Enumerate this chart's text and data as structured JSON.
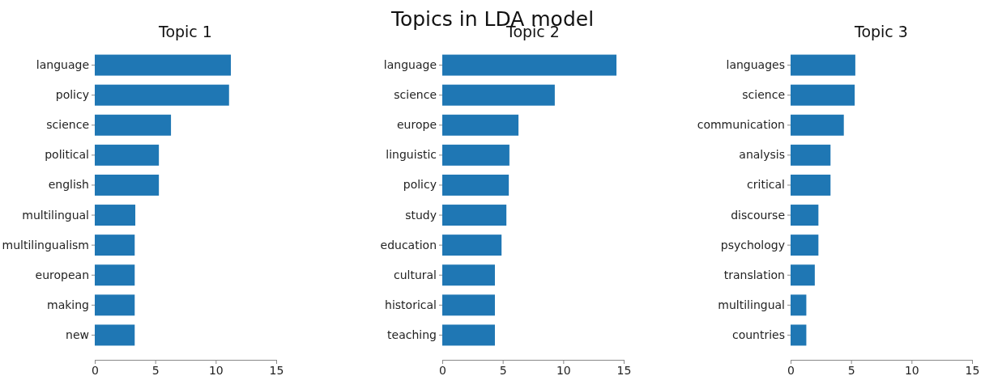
{
  "chart_data": [
    {
      "type": "bar",
      "orientation": "horizontal",
      "title": "Topic 1",
      "annotations": [
        "Topics in LDA model"
      ],
      "categories": [
        "language",
        "policy",
        "science",
        "political",
        "english",
        "multilingual",
        "multilingualism",
        "european",
        "making",
        "new"
      ],
      "values": [
        11.25,
        11.1,
        6.3,
        5.3,
        5.3,
        3.35,
        3.3,
        3.3,
        3.3,
        3.3
      ],
      "color": "#1f77b4",
      "xlim": [
        0,
        15
      ],
      "xticks": [
        0,
        5,
        10,
        15
      ],
      "grid": false
    },
    {
      "type": "bar",
      "orientation": "horizontal",
      "title": "Topic 2",
      "categories": [
        "language",
        "science",
        "europe",
        "linguistic",
        "policy",
        "study",
        "education",
        "cultural",
        "historical",
        "teaching"
      ],
      "values": [
        14.4,
        9.3,
        6.3,
        5.55,
        5.5,
        5.3,
        4.9,
        4.35,
        4.35,
        4.35
      ],
      "color": "#1f77b4",
      "xlim": [
        0,
        15
      ],
      "xticks": [
        0,
        5,
        10,
        15
      ],
      "grid": false
    },
    {
      "type": "bar",
      "orientation": "horizontal",
      "title": "Topic 3",
      "categories": [
        "languages",
        "science",
        "communication",
        "analysis",
        "critical",
        "discourse",
        "psychology",
        "translation",
        "multilingual",
        "countries"
      ],
      "values": [
        5.35,
        5.3,
        4.4,
        3.3,
        3.3,
        2.3,
        2.3,
        2.0,
        1.3,
        1.3
      ],
      "color": "#1f77b4",
      "xlim": [
        0,
        15
      ],
      "xticks": [
        0,
        5,
        10,
        15
      ],
      "grid": false
    }
  ]
}
